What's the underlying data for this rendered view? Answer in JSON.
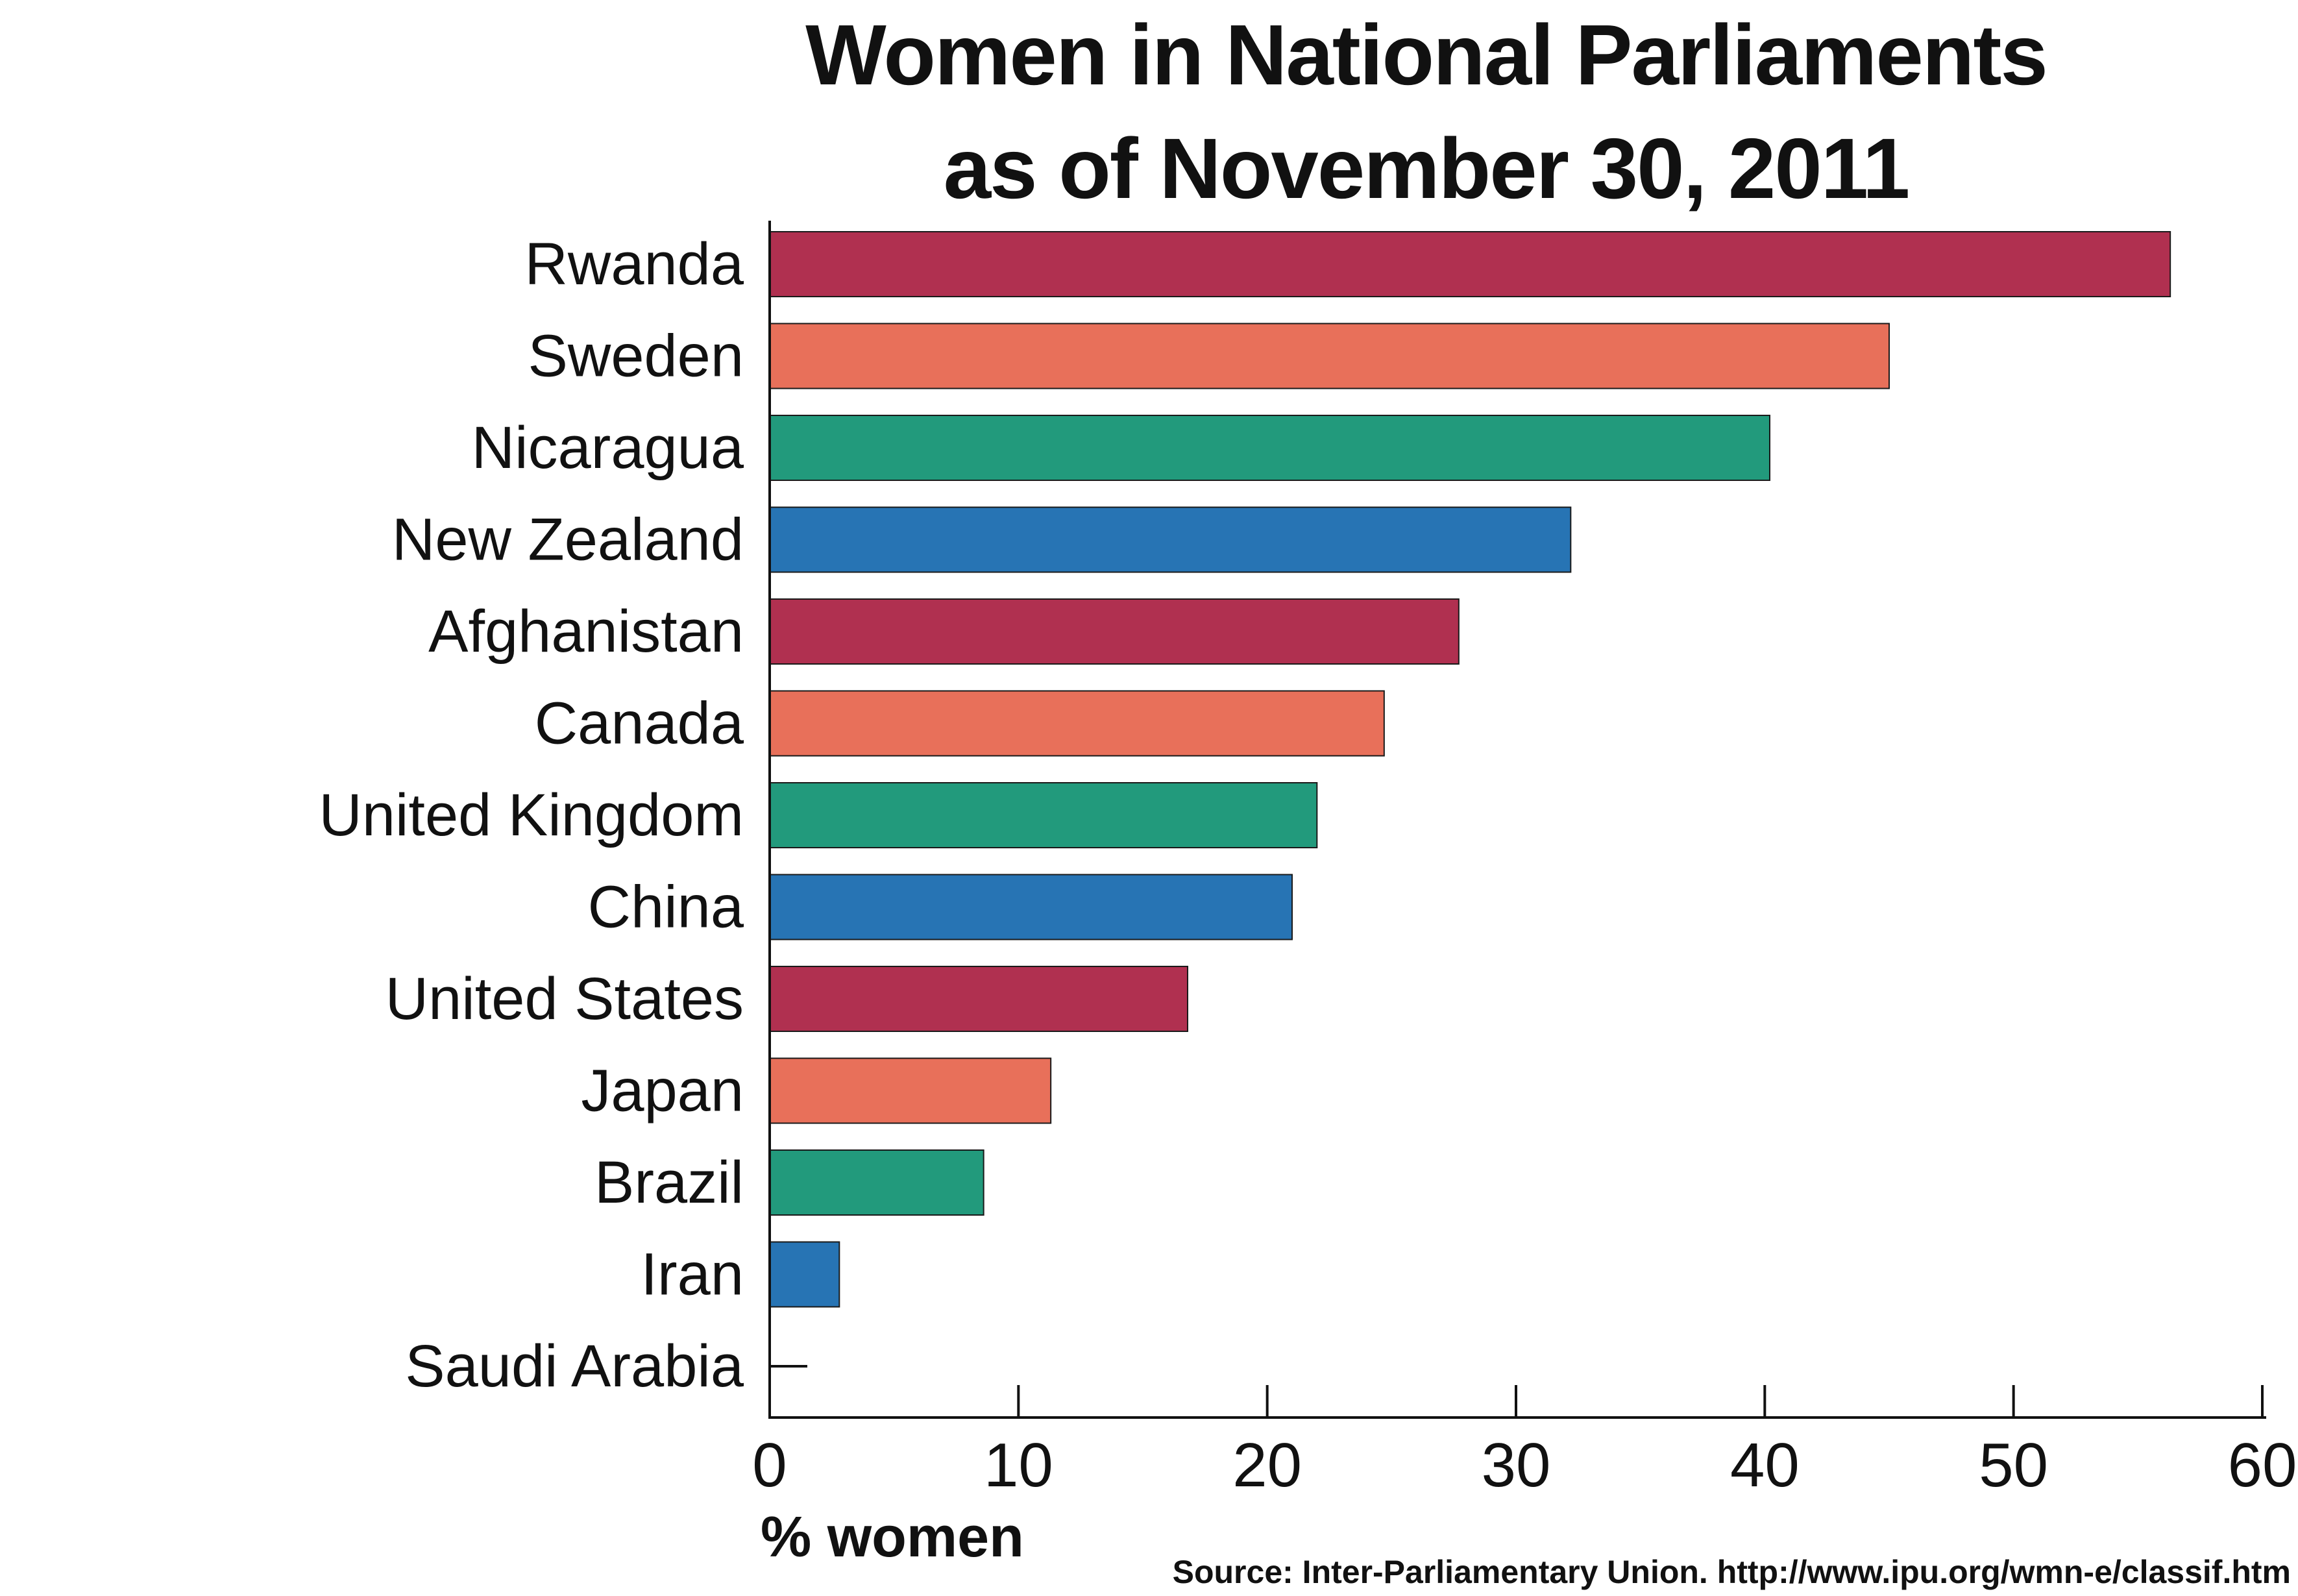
{
  "chart_data": {
    "type": "bar",
    "orientation": "horizontal",
    "title_lines": [
      "Women in National Parliaments",
      "as of November 30, 2011"
    ],
    "categories": [
      "Rwanda",
      "Sweden",
      "Nicaragua",
      "New Zealand",
      "Afghanistan",
      "Canada",
      "United Kingdom",
      "China",
      "United States",
      "Japan",
      "Brazil",
      "Iran",
      "Saudi Arabia"
    ],
    "values": [
      56.3,
      45.0,
      40.2,
      32.2,
      27.7,
      24.7,
      22.0,
      21.0,
      16.8,
      11.3,
      8.6,
      2.8,
      0.0
    ],
    "colors": [
      "#b03050",
      "#e8705a",
      "#229a7c",
      "#2774b4",
      "#b03050",
      "#e8705a",
      "#229a7c",
      "#2774b4",
      "#b03050",
      "#e8705a",
      "#229a7c",
      "#2774b4",
      "#b03050"
    ],
    "xlabel": "% women",
    "xlim": [
      0,
      60
    ],
    "xticks": [
      0,
      10,
      20,
      30,
      40,
      50,
      60
    ],
    "grid": false,
    "legend": "none",
    "source": "Source: Inter-Parliamentary Union. http://www.ipu.org/wmn-e/classif.htm"
  }
}
